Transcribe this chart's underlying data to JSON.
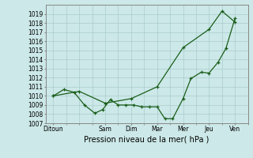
{
  "xlabel": "Pression niveau de la mer( hPa )",
  "background_color": "#cce8e8",
  "grid_color": "#aacccc",
  "line_color": "#1a5e1a",
  "ylim": [
    1007,
    1020
  ],
  "yticks": [
    1007,
    1008,
    1009,
    1010,
    1011,
    1012,
    1013,
    1014,
    1015,
    1016,
    1017,
    1018,
    1019
  ],
  "x_labels": [
    "Ditoun",
    "Sam",
    "Dim",
    "Mar",
    "Mer",
    "Jeu",
    "Ven"
  ],
  "x_tick_pos": [
    0,
    2,
    3,
    4,
    5,
    6,
    7
  ],
  "x_major_lines": [
    0,
    1,
    2,
    3,
    4,
    5,
    6,
    7
  ],
  "line1_x": [
    0,
    1,
    2,
    3,
    4,
    5,
    6,
    6.5,
    7
  ],
  "line1_y": [
    1010.0,
    1010.5,
    1009.2,
    1009.7,
    1011.0,
    1015.3,
    1017.3,
    1019.3,
    1018.1
  ],
  "line2_x": [
    0,
    0.4,
    0.8,
    1.2,
    1.6,
    1.9,
    2.2,
    2.5,
    2.8,
    3.1,
    3.4,
    3.7,
    4.0,
    4.3,
    4.6,
    5.0,
    5.3,
    5.7,
    6.0,
    6.35,
    6.65,
    7.0
  ],
  "line2_y": [
    1010.0,
    1010.7,
    1010.4,
    1009.0,
    1008.1,
    1008.5,
    1009.6,
    1009.0,
    1009.0,
    1009.0,
    1008.8,
    1008.8,
    1008.8,
    1007.5,
    1007.5,
    1009.7,
    1011.9,
    1012.6,
    1012.5,
    1013.7,
    1015.2,
    1018.5
  ]
}
